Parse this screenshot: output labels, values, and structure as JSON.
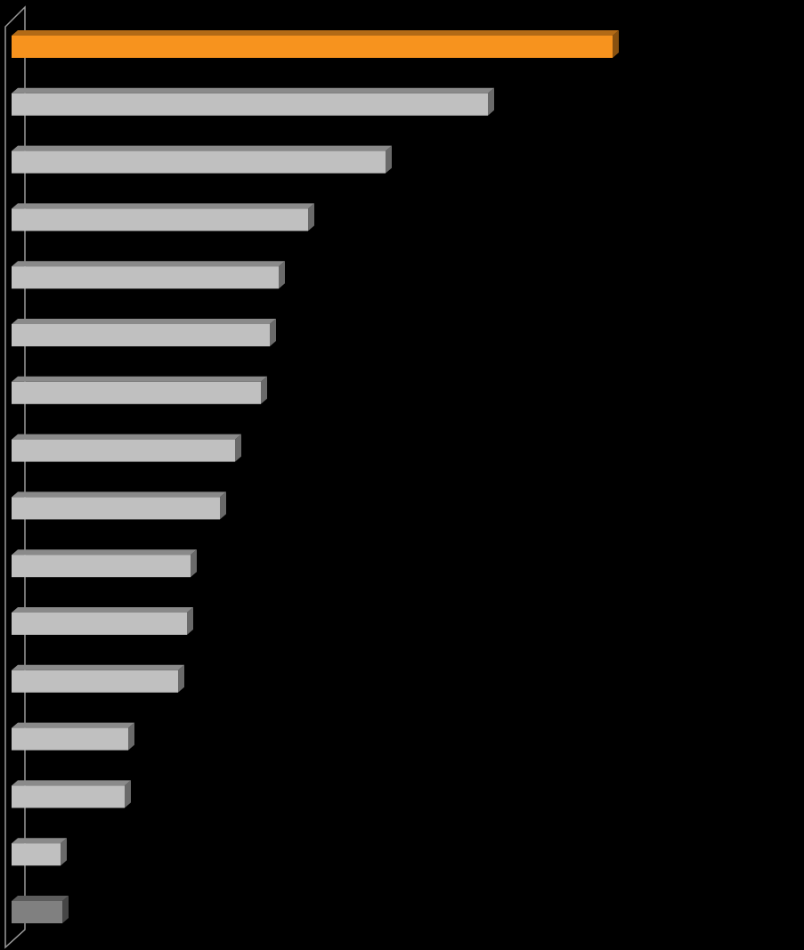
{
  "chart_data": {
    "type": "bar",
    "orientation": "horizontal",
    "values": [
      675,
      535,
      420,
      333,
      300,
      290,
      280,
      251,
      234,
      201,
      197,
      187,
      131,
      127,
      55,
      57
    ],
    "colors": [
      "#f7931e",
      "#c0c0c0",
      "#c0c0c0",
      "#c0c0c0",
      "#c0c0c0",
      "#c0c0c0",
      "#c0c0c0",
      "#c0c0c0",
      "#c0c0c0",
      "#c0c0c0",
      "#c0c0c0",
      "#c0c0c0",
      "#c0c0c0",
      "#c0c0c0",
      "#c0c0c0",
      "#808080"
    ],
    "xlim": [
      0,
      890
    ]
  }
}
